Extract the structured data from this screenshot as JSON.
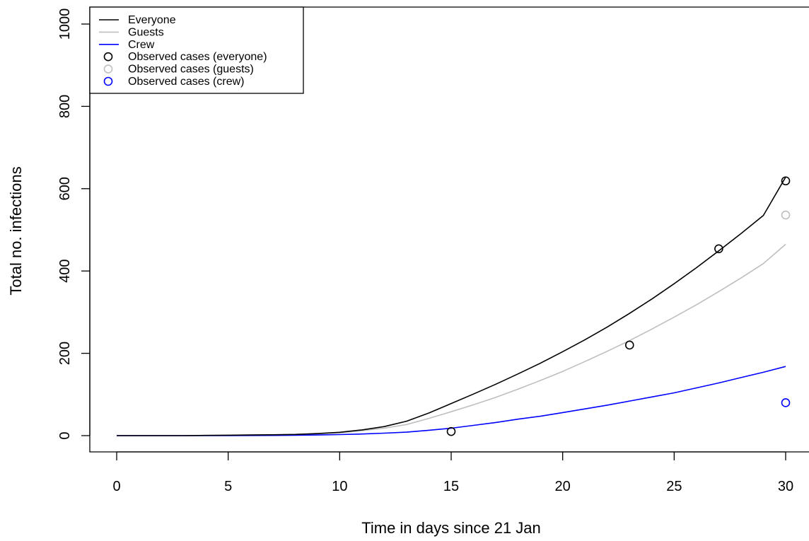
{
  "chart_data": {
    "type": "line",
    "title": "",
    "xlabel": "Time in days since 21 Jan",
    "ylabel": "Total no. infections",
    "xlim": [
      0,
      30
    ],
    "ylim": [
      0,
      1000
    ],
    "x_ticks": [
      0,
      5,
      10,
      15,
      20,
      25,
      30
    ],
    "y_ticks": [
      0,
      200,
      400,
      600,
      800,
      1000
    ],
    "x_tick_labels": [
      "0",
      "5",
      "10",
      "15",
      "20",
      "25",
      "30"
    ],
    "y_tick_labels": [
      "0",
      "200",
      "400",
      "600",
      "800",
      "1000"
    ],
    "grid": false,
    "legend_position": "top-left",
    "series": [
      {
        "name": "Everyone",
        "color": "#000000",
        "x": [
          0,
          1,
          2,
          3,
          4,
          5,
          6,
          7,
          8,
          9,
          10,
          11,
          12,
          13,
          14,
          15,
          16,
          17,
          18,
          19,
          20,
          21,
          22,
          23,
          24,
          25,
          26,
          27,
          28,
          29,
          30
        ],
        "y": [
          0,
          0,
          0,
          0,
          0.5,
          1,
          1.5,
          2,
          3,
          5,
          8,
          14,
          22,
          35,
          55,
          78,
          101,
          125,
          150,
          176,
          204,
          233,
          264,
          297,
          332,
          369,
          408,
          449,
          491,
          535,
          628
        ]
      },
      {
        "name": "Guests",
        "color": "#bebebe",
        "x": [
          0,
          1,
          2,
          3,
          4,
          5,
          6,
          7,
          8,
          9,
          10,
          11,
          12,
          13,
          14,
          15,
          16,
          17,
          18,
          19,
          20,
          21,
          22,
          23,
          24,
          25,
          26,
          27,
          28,
          29,
          30
        ],
        "y": [
          0,
          0,
          0,
          0,
          0.5,
          1,
          1.5,
          2,
          3,
          4.5,
          7,
          12,
          18,
          27,
          42,
          58,
          75,
          93,
          113,
          134,
          156,
          180,
          205,
          231,
          259,
          288,
          318,
          350,
          383,
          418,
          465
        ]
      },
      {
        "name": "Crew",
        "color": "#0000ff",
        "x": [
          0,
          1,
          2,
          3,
          4,
          5,
          6,
          7,
          8,
          9,
          10,
          11,
          12,
          13,
          14,
          15,
          16,
          17,
          18,
          19,
          20,
          21,
          22,
          23,
          24,
          25,
          26,
          27,
          28,
          29,
          30
        ],
        "y": [
          0,
          0,
          0,
          0,
          0,
          0,
          0.3,
          0.5,
          1,
          1.5,
          2.5,
          4,
          6,
          8.5,
          13,
          18,
          25,
          32,
          40,
          47,
          56,
          65,
          74,
          84,
          94,
          104,
          116,
          128,
          141,
          154,
          168
        ]
      }
    ],
    "observed": [
      {
        "name": "Observed cases (everyone)",
        "color": "#000000",
        "x": [
          15,
          23,
          27,
          30
        ],
        "y": [
          10,
          220,
          454,
          619
        ]
      },
      {
        "name": "Observed cases (guests)",
        "color": "#bebebe",
        "x": [
          30
        ],
        "y": [
          536
        ]
      },
      {
        "name": "Observed cases (crew)",
        "color": "#0000ff",
        "x": [
          30
        ],
        "y": [
          80
        ]
      }
    ],
    "legend": [
      {
        "label": "Everyone",
        "kind": "line",
        "color": "#000000"
      },
      {
        "label": "Guests",
        "kind": "line",
        "color": "#bebebe"
      },
      {
        "label": "Crew",
        "kind": "line",
        "color": "#0000ff"
      },
      {
        "label": "Observed cases (everyone)",
        "kind": "point",
        "color": "#000000"
      },
      {
        "label": "Observed cases (guests)",
        "kind": "point",
        "color": "#bebebe"
      },
      {
        "label": "Observed cases (crew)",
        "kind": "point",
        "color": "#0000ff"
      }
    ]
  }
}
